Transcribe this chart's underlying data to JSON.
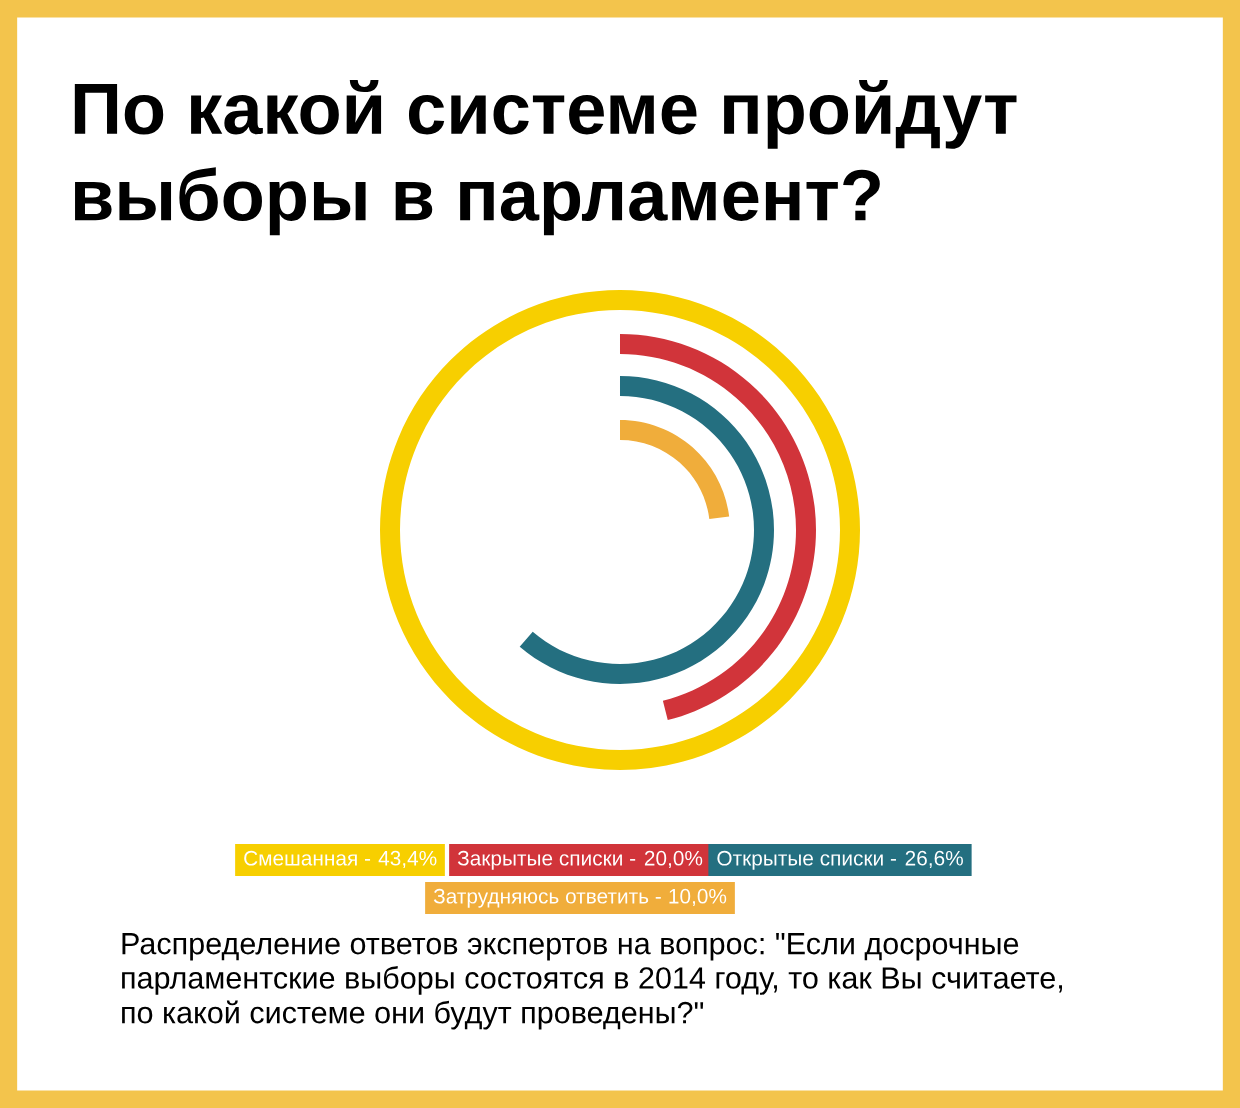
{
  "chart_data": {
    "type": "other",
    "title": "По какой системе пройдут\nвыборы в парламент?",
    "categories": [
      "Смешанная -",
      "Закрытые списки -",
      "Открытые списки -",
      "Затрудняюсь ответить -"
    ],
    "values": [
      43.4,
      20.0,
      26.6,
      10.0
    ],
    "value_labels": [
      "43,4%",
      "20,0%",
      "26,6%",
      "10,0%"
    ],
    "colors": [
      "#f7cf00",
      "#d1343a",
      "#246f80",
      "#f0ad3b"
    ],
    "annotations": [
      "Распределение ответов экспертов на вопрос: \"Если досрочные\nпарламентские выборы состоятся в 2014 году, то как Вы считаете,\nпо какой системе они будут проведены?\""
    ]
  }
}
